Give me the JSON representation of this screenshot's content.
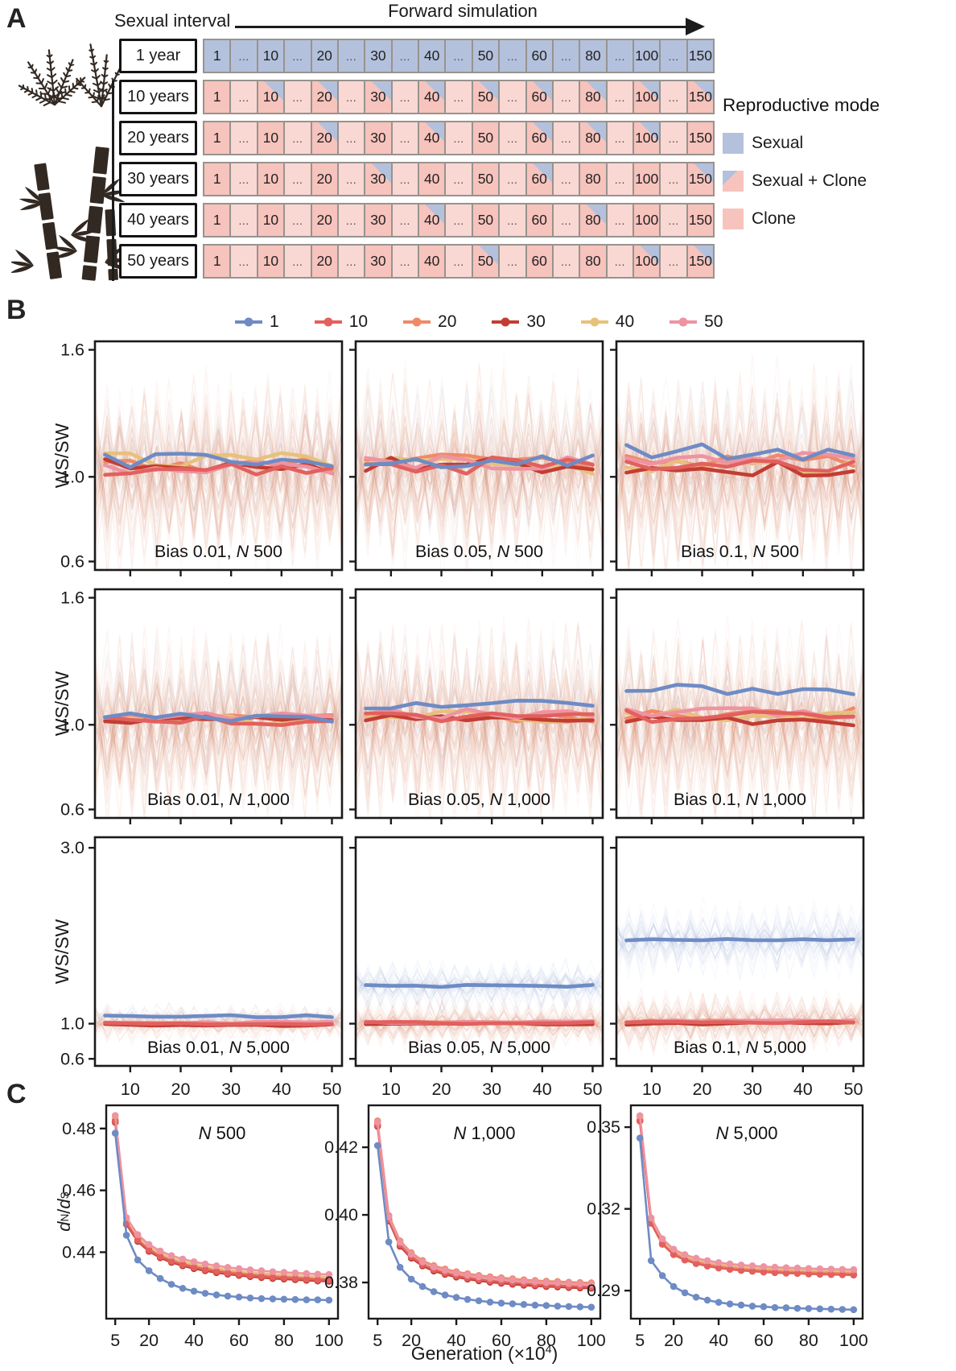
{
  "panelA": {
    "label": "A",
    "sexual_interval_label": "Sexual interval",
    "forward_simulation_label": "Forward simulation",
    "generations": [
      "1",
      "...",
      "10",
      "...",
      "20",
      "...",
      "30",
      "...",
      "40",
      "...",
      "50",
      "...",
      "60",
      "...",
      "80",
      "...",
      "100",
      "...",
      "150"
    ],
    "rows": [
      {
        "label": "1 year",
        "base": "sexual",
        "mixed_cells": []
      },
      {
        "label": "10 years",
        "base": "clone",
        "mixed_cells": [
          "10",
          "20",
          "30",
          "40",
          "50",
          "60",
          "80",
          "100",
          "150"
        ]
      },
      {
        "label": "20 years",
        "base": "clone",
        "mixed_cells": [
          "20",
          "40",
          "60",
          "80",
          "100"
        ]
      },
      {
        "label": "30 years",
        "base": "clone",
        "mixed_cells": [
          "30",
          "60",
          "150"
        ]
      },
      {
        "label": "40 years",
        "base": "clone",
        "mixed_cells": [
          "40",
          "80"
        ]
      },
      {
        "label": "50 years",
        "base": "clone",
        "mixed_cells": [
          "50",
          "100",
          "150"
        ]
      }
    ],
    "legend": {
      "title": "Reproductive mode",
      "items": [
        {
          "label": "Sexual",
          "swatch": "sexual"
        },
        {
          "label": "Sexual + Clone",
          "swatch": "mixed"
        },
        {
          "label": "Clone",
          "swatch": "clone"
        }
      ]
    },
    "colors": {
      "sexual": "#b4c1dc",
      "clone": "#f7c3bd",
      "clone_light": "#f9d7d2",
      "cell_border": "#97938e"
    }
  },
  "panelB": {
    "label": "B",
    "ylabel": "WS/SW",
    "legend": [
      {
        "label": "1",
        "color": "#6e8bc4"
      },
      {
        "label": "10",
        "color": "#e2605e"
      },
      {
        "label": "20",
        "color": "#ef8a68"
      },
      {
        "label": "30",
        "color": "#c23d33"
      },
      {
        "label": "40",
        "color": "#e7c17c"
      },
      {
        "label": "50",
        "color": "#ee93a2"
      }
    ],
    "bg_colors": {
      "red": "#dd8b6e",
      "blue": "#9bb0d8"
    },
    "xticks": [
      10,
      20,
      30,
      40,
      50
    ],
    "xlim": [
      3,
      52
    ],
    "rows": [
      {
        "yticks": [
          "1.6",
          "1.0",
          "0.6"
        ],
        "ylim": [
          0.56,
          1.64
        ]
      },
      {
        "yticks": [
          "1.6",
          "1.0",
          "0.6"
        ],
        "ylim": [
          0.56,
          1.64
        ]
      },
      {
        "yticks": [
          "3.0",
          "1.0",
          "0.6"
        ],
        "ylim": [
          0.52,
          3.12
        ]
      }
    ]
  },
  "panelC": {
    "label": "C",
    "ylabel": {
      "d1": "d",
      "sub1": "N",
      "slash": "/",
      "d2": "d",
      "sub2": "S"
    },
    "xlabel": {
      "prefix": "Generation (×10",
      "sup": "4",
      "suffix": ")"
    },
    "xticks": [
      5,
      20,
      40,
      60,
      80,
      100
    ],
    "xlim": [
      1,
      104
    ]
  },
  "chart_data": {
    "panelB_plots": [
      {
        "type": "line",
        "label": {
          "bias": "Bias 0.01,",
          "n": "N",
          "size": "500"
        },
        "series_means": {
          "1": 1.07,
          "10": 1.035,
          "20": 1.055,
          "30": 1.045,
          "40": 1.075,
          "50": 1.055
        },
        "wiggle": 0.04,
        "bg": {
          "red": 80,
          "blue": 8,
          "redC": 1.02,
          "blueC": 1.06,
          "redA": 0.5,
          "blueA": 0.4
        }
      },
      {
        "type": "line",
        "label": {
          "bias": "Bias 0.05,",
          "n": "N",
          "size": "500"
        },
        "series_means": {
          "1": 1.08,
          "10": 1.05,
          "20": 1.065,
          "30": 1.05,
          "40": 1.055,
          "50": 1.06
        },
        "wiggle": 0.042,
        "bg": {
          "red": 80,
          "blue": 8,
          "redC": 1.02,
          "blueC": 1.06,
          "redA": 0.5,
          "blueA": 0.4
        }
      },
      {
        "type": "line",
        "label": {
          "bias": "Bias 0.1,",
          "n": "N",
          "size": "500"
        },
        "series_means": {
          "1": 1.115,
          "10": 1.04,
          "20": 1.065,
          "30": 1.045,
          "40": 1.06,
          "50": 1.075
        },
        "wiggle": 0.04,
        "bg": {
          "red": 80,
          "blue": 8,
          "redC": 1.02,
          "blueC": 1.08,
          "redA": 0.5,
          "blueA": 0.4
        }
      },
      {
        "type": "line",
        "label": {
          "bias": "Bias 0.01,",
          "n": "N",
          "size": "1,000"
        },
        "series_means": {
          "1": 1.035,
          "10": 1.02,
          "20": 1.025,
          "30": 1.015,
          "40": 1.025,
          "50": 1.035
        },
        "wiggle": 0.022,
        "bg": {
          "red": 80,
          "blue": 8,
          "redC": 1.0,
          "blueC": 1.05,
          "redA": 0.47,
          "blueA": 0.38
        }
      },
      {
        "type": "line",
        "label": {
          "bias": "Bias 0.05,",
          "n": "N",
          "size": "1,000"
        },
        "series_means": {
          "1": 1.09,
          "10": 1.035,
          "20": 1.04,
          "30": 1.02,
          "40": 1.04,
          "50": 1.05
        },
        "wiggle": 0.028,
        "bg": {
          "red": 80,
          "blue": 8,
          "redC": 1.0,
          "blueC": 1.07,
          "redA": 0.47,
          "blueA": 0.38
        }
      },
      {
        "type": "line",
        "label": {
          "bias": "Bias 0.1,",
          "n": "N",
          "size": "1,000"
        },
        "series_means": {
          "1": 1.165,
          "10": 1.04,
          "20": 1.05,
          "30": 1.025,
          "40": 1.045,
          "50": 1.06
        },
        "wiggle": 0.03,
        "bg": {
          "red": 80,
          "blue": 8,
          "redC": 1.0,
          "blueC": 1.1,
          "redA": 0.47,
          "blueA": 0.38
        }
      },
      {
        "type": "line",
        "label": {
          "bias": "Bias 0.01,",
          "n": "N",
          "size": "5,000"
        },
        "series_means": {
          "1": 1.085,
          "10": 1.0,
          "20": 1.005,
          "30": 0.985,
          "40": 1.0,
          "50": 1.01
        },
        "wiggle": 0.013,
        "bg": {
          "red": 50,
          "blue": 14,
          "redC": 1.0,
          "blueC": 1.07,
          "redA": 0.22,
          "blueA": 0.15
        }
      },
      {
        "type": "line",
        "label": {
          "bias": "Bias 0.05,",
          "n": "N",
          "size": "5,000"
        },
        "series_means": {
          "1": 1.43,
          "10": 1.01,
          "20": 1.015,
          "30": 1.0,
          "40": 1.01,
          "50": 1.02
        },
        "wiggle": 0.013,
        "bg": {
          "red": 60,
          "blue": 45,
          "redC": 1.0,
          "blueC": 1.43,
          "redA": 0.28,
          "blueA": 0.3
        }
      },
      {
        "type": "line",
        "label": {
          "bias": "Bias 0.1,",
          "n": "N",
          "size": "5,000"
        },
        "series_means": {
          "1": 1.95,
          "10": 1.02,
          "20": 1.025,
          "30": 1.005,
          "40": 1.015,
          "50": 1.03
        },
        "wiggle": 0.016,
        "bg": {
          "red": 65,
          "blue": 50,
          "redC": 1.02,
          "blueC": 1.95,
          "redA": 0.36,
          "blueA": 0.45
        }
      }
    ],
    "panelC_plots": [
      {
        "type": "line",
        "title": {
          "n": "N",
          "size": "500"
        },
        "yticks": [
          "0.48",
          "0.46",
          "0.44"
        ],
        "ylim": [
          0.4185,
          0.4875
        ],
        "x": [
          5,
          10,
          15,
          20,
          25,
          30,
          35,
          40,
          45,
          50,
          55,
          60,
          65,
          70,
          75,
          80,
          85,
          90,
          95,
          100
        ],
        "series_blue": [
          0.4785,
          0.4455,
          0.4375,
          0.434,
          0.4315,
          0.4296,
          0.4283,
          0.4274,
          0.4267,
          0.4262,
          0.4258,
          0.4255,
          0.4252,
          0.425,
          0.4249,
          0.4248,
          0.4247,
          0.4246,
          0.4246,
          0.4245
        ],
        "series_clonal_base": [
          0.483,
          0.45,
          0.4445,
          0.4413,
          0.4392,
          0.4377,
          0.4366,
          0.4357,
          0.435,
          0.4344,
          0.4339,
          0.4335,
          0.4331,
          0.4328,
          0.4325,
          0.4323,
          0.4321,
          0.4319,
          0.4317,
          0.4316
        ],
        "clonal_offsets": {
          "10": -0.0006,
          "20": -0.0002,
          "30": -0.001,
          "40": 0.0004,
          "50": 0.0012
        }
      },
      {
        "type": "line",
        "title": {
          "n": "N",
          "size": "1,000"
        },
        "yticks": [
          "0.42",
          "0.40",
          "0.38"
        ],
        "ylim": [
          0.3693,
          0.4324
        ],
        "x": [
          5,
          10,
          15,
          20,
          25,
          30,
          35,
          40,
          45,
          50,
          55,
          60,
          65,
          70,
          75,
          80,
          85,
          90,
          95,
          100
        ],
        "series_blue": [
          0.4205,
          0.392,
          0.3845,
          0.381,
          0.3788,
          0.3773,
          0.3763,
          0.3756,
          0.375,
          0.3746,
          0.3742,
          0.3739,
          0.3737,
          0.3735,
          0.3733,
          0.3732,
          0.373,
          0.3729,
          0.3728,
          0.3727
        ],
        "series_clonal_base": [
          0.427,
          0.399,
          0.3915,
          0.388,
          0.3857,
          0.3842,
          0.3832,
          0.3824,
          0.3818,
          0.3813,
          0.3809,
          0.3806,
          0.3803,
          0.38,
          0.3798,
          0.3796,
          0.3795,
          0.3793,
          0.3792,
          0.3791
        ],
        "clonal_offsets": {
          "10": -0.0004,
          "20": 0.0008,
          "30": -0.0008,
          "40": -0.0002,
          "50": 0.0004
        }
      },
      {
        "type": "line",
        "title": {
          "n": "N",
          "size": "5,000"
        },
        "yticks": [
          "0.35",
          "0.32",
          "0.29"
        ],
        "ylim": [
          0.2797,
          0.358
        ],
        "x": [
          5,
          10,
          15,
          20,
          25,
          30,
          35,
          40,
          45,
          50,
          55,
          60,
          65,
          70,
          75,
          80,
          85,
          90,
          95,
          100
        ],
        "series_blue": [
          0.346,
          0.301,
          0.2955,
          0.2915,
          0.2892,
          0.2876,
          0.2865,
          0.2857,
          0.2851,
          0.2847,
          0.2843,
          0.2841,
          0.2838,
          0.2837,
          0.2835,
          0.2834,
          0.2833,
          0.2832,
          0.2831,
          0.283
        ],
        "series_clonal_base": [
          0.353,
          0.3155,
          0.3078,
          0.304,
          0.302,
          0.3007,
          0.2998,
          0.2991,
          0.2986,
          0.2982,
          0.2979,
          0.2976,
          0.2974,
          0.2972,
          0.2971,
          0.2969,
          0.2968,
          0.2967,
          0.2966,
          0.2965
        ],
        "clonal_offsets": {
          "10": -0.0008,
          "20": 0.0,
          "30": -0.0006,
          "40": 0.0006,
          "50": 0.0012
        }
      }
    ]
  }
}
